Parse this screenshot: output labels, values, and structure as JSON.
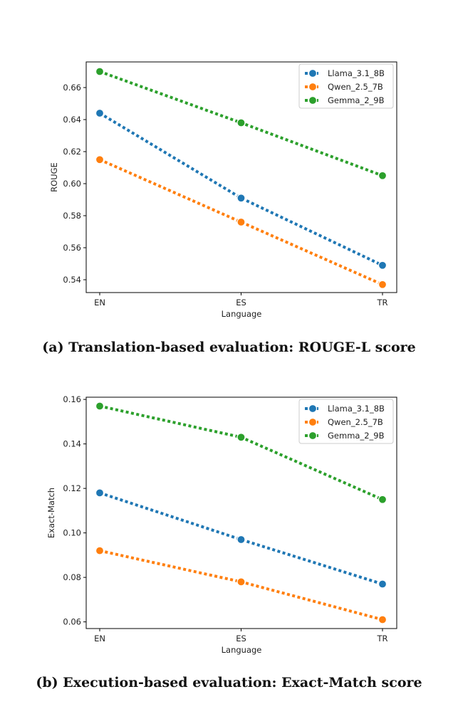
{
  "chart_data": [
    {
      "type": "line",
      "xlabel": "Language",
      "ylabel": "ROUGE",
      "categories": [
        "EN",
        "ES",
        "TR"
      ],
      "ylim": [
        0.532,
        0.676
      ],
      "yticks": [
        0.54,
        0.56,
        0.58,
        0.6,
        0.62,
        0.64,
        0.66
      ],
      "ytick_labels": [
        "0.54",
        "0.56",
        "0.58",
        "0.60",
        "0.62",
        "0.64",
        "0.66"
      ],
      "legend_position": "top-right",
      "line_style": "dotted",
      "marker": "circle",
      "grid": false,
      "series": [
        {
          "name": "Llama_3.1_8B",
          "color": "#1f77b4",
          "values": [
            0.644,
            0.591,
            0.549
          ]
        },
        {
          "name": "Qwen_2.5_7B",
          "color": "#ff7f0e",
          "values": [
            0.615,
            0.576,
            0.537
          ]
        },
        {
          "name": "Gemma_2_9B",
          "color": "#2ca02c",
          "values": [
            0.67,
            0.638,
            0.605
          ]
        }
      ]
    },
    {
      "type": "line",
      "xlabel": "Language",
      "ylabel": "Exact-Match",
      "categories": [
        "EN",
        "ES",
        "TR"
      ],
      "ylim": [
        0.057,
        0.161
      ],
      "yticks": [
        0.06,
        0.08,
        0.1,
        0.12,
        0.14,
        0.16
      ],
      "ytick_labels": [
        "0.06",
        "0.08",
        "0.10",
        "0.12",
        "0.14",
        "0.16"
      ],
      "legend_position": "top-right",
      "line_style": "dotted",
      "marker": "circle",
      "grid": false,
      "series": [
        {
          "name": "Llama_3.1_8B",
          "color": "#1f77b4",
          "values": [
            0.118,
            0.097,
            0.077
          ]
        },
        {
          "name": "Qwen_2.5_7B",
          "color": "#ff7f0e",
          "values": [
            0.092,
            0.078,
            0.061
          ]
        },
        {
          "name": "Gemma_2_9B",
          "color": "#2ca02c",
          "values": [
            0.157,
            0.143,
            0.115
          ]
        }
      ]
    }
  ],
  "captions": {
    "a": "(a) Translation-based evaluation: ROUGE-L score",
    "b": "(b) Execution-based evaluation: Exact-Match score"
  }
}
